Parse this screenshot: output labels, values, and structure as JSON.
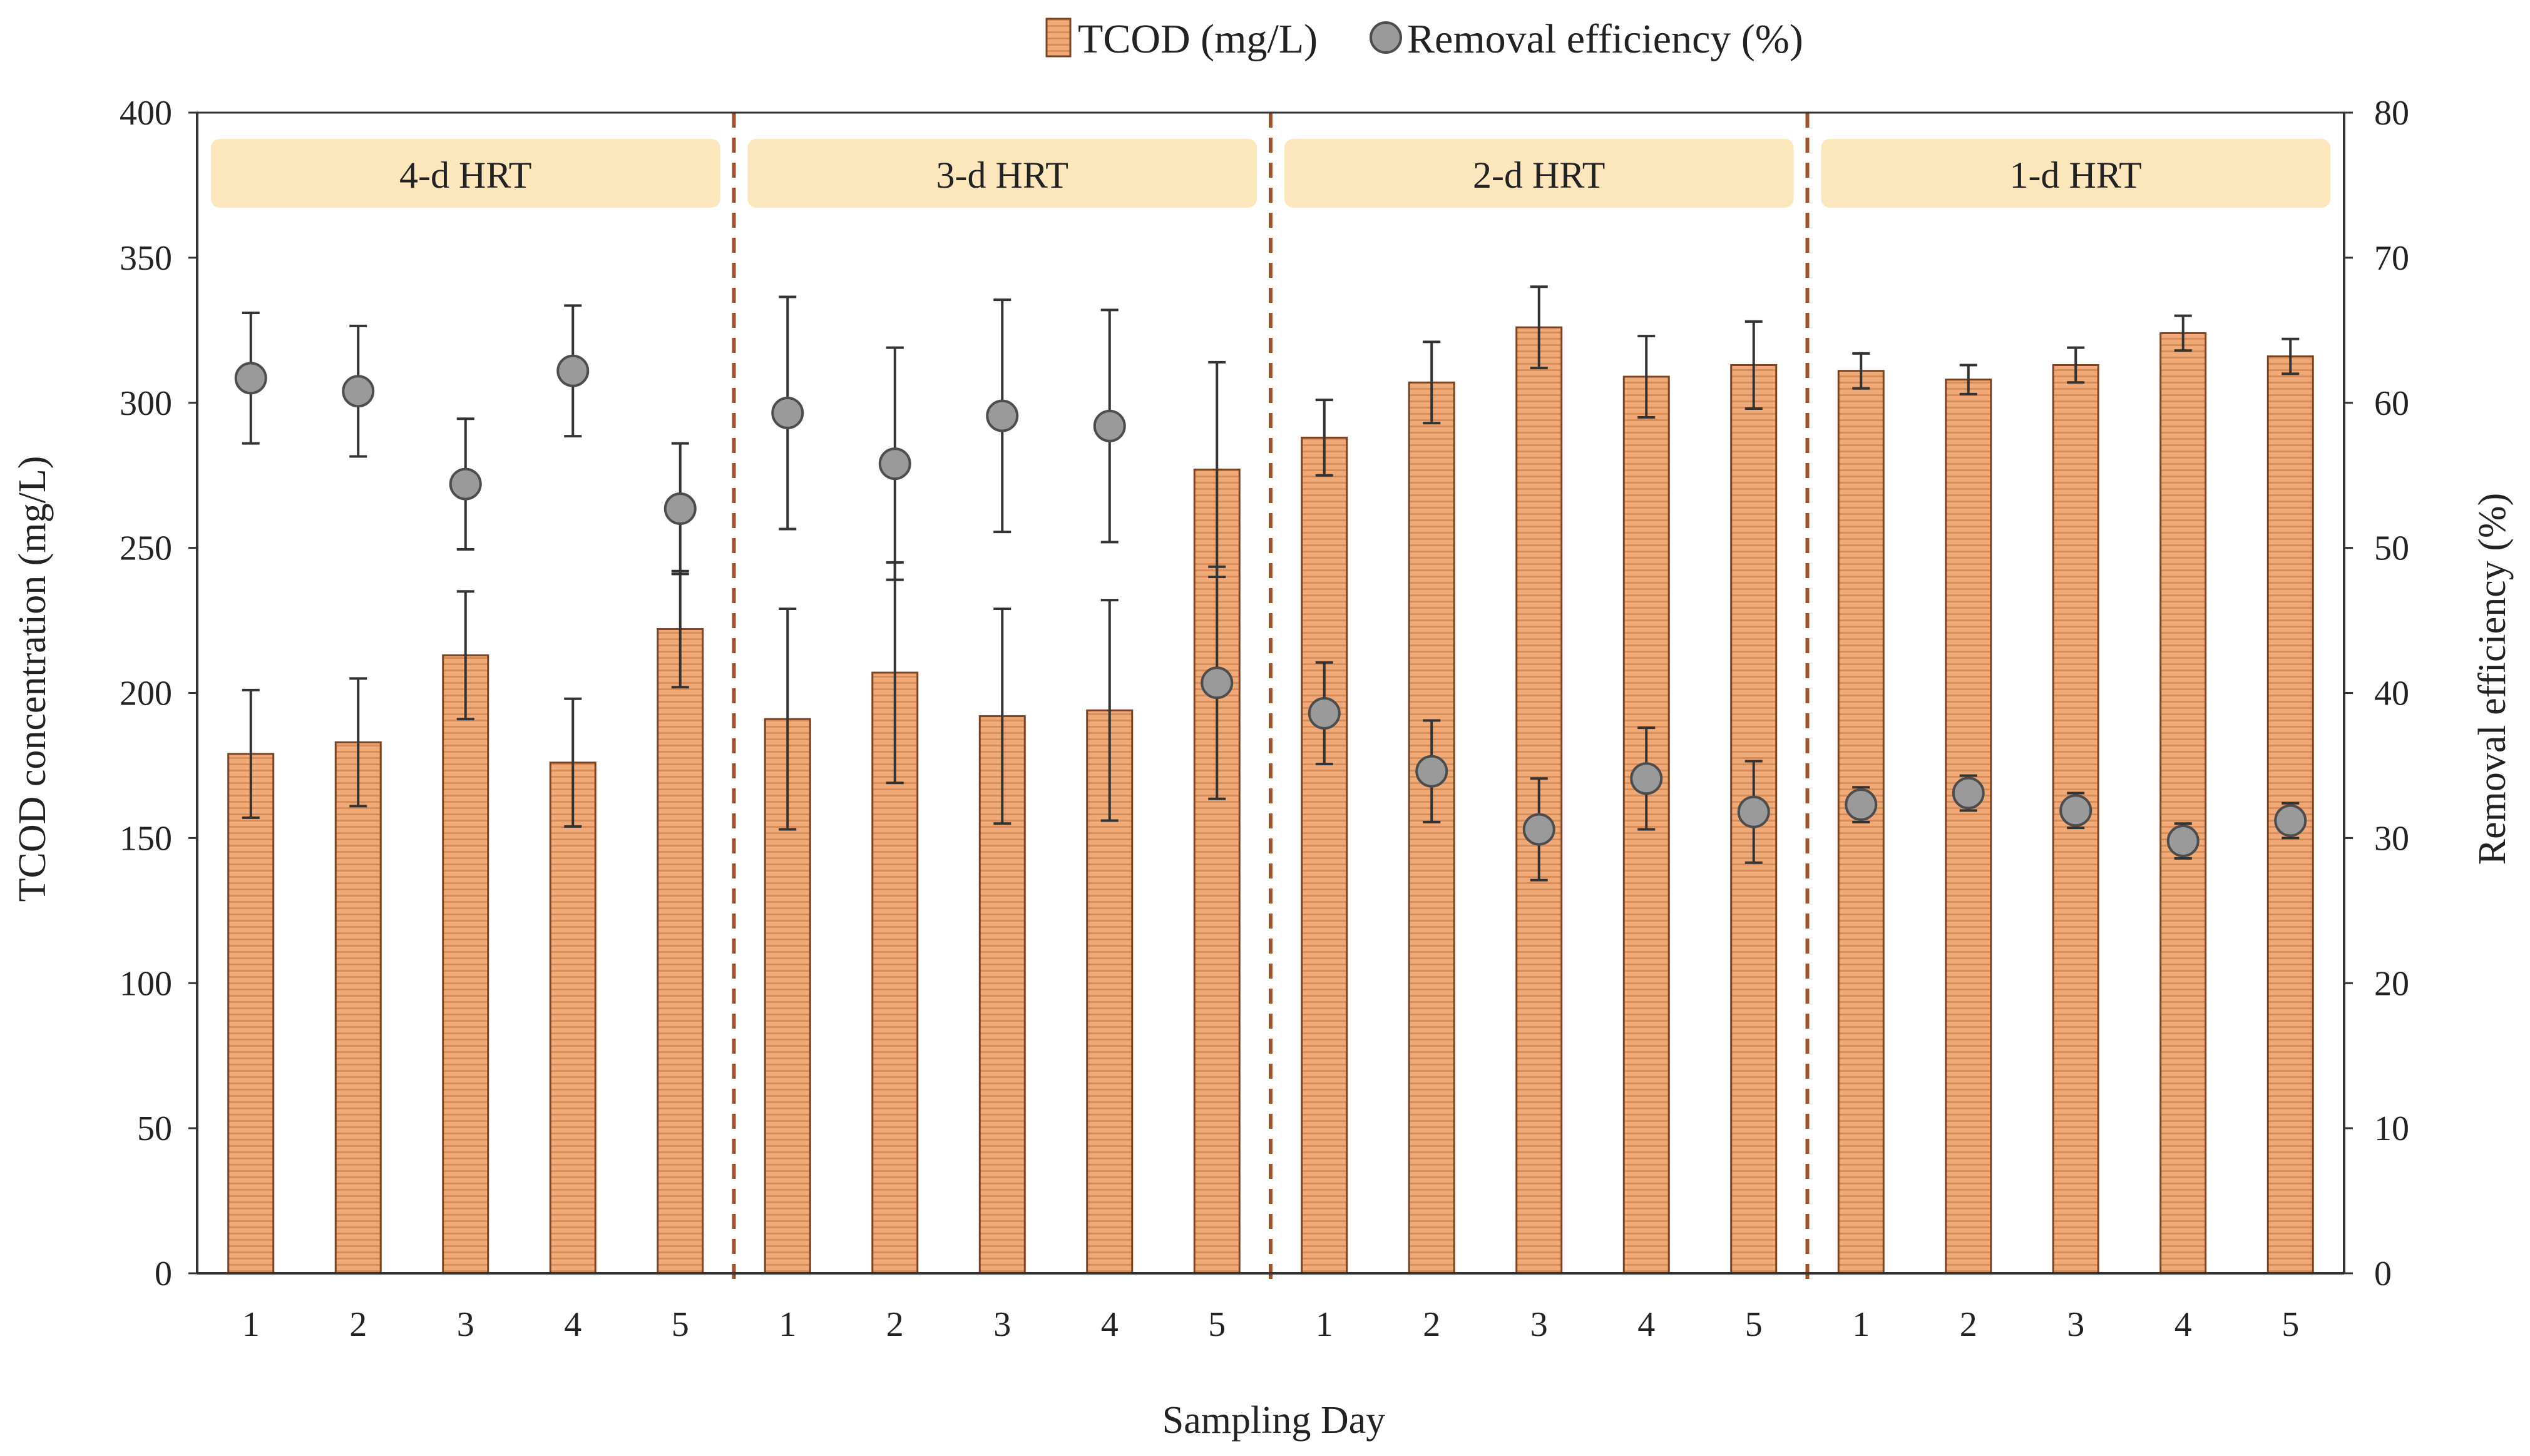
{
  "chart_data": {
    "type": "bar",
    "xlabel": "Sampling  Day",
    "ylabel_left": "TCOD concentration  (mg/L)",
    "ylabel_right": "Removal  efficiency  (%)",
    "ylim_left": [
      0,
      400
    ],
    "ylim_right": [
      0,
      80
    ],
    "yticks_left": [
      "0",
      "50",
      "100",
      "150",
      "200",
      "250",
      "300",
      "350",
      "400"
    ],
    "yticks_right": [
      "0",
      "10",
      "20",
      "30",
      "40",
      "50",
      "60",
      "70",
      "80"
    ],
    "grid": false,
    "legend_position": "top-center",
    "legend": {
      "bar_label": "TCOD (mg/L)",
      "dot_label": "Removal  efficiency (%)"
    },
    "categories": [
      "1",
      "2",
      "3",
      "4",
      "5",
      "1",
      "2",
      "3",
      "4",
      "5",
      "1",
      "2",
      "3",
      "4",
      "5",
      "1",
      "2",
      "3",
      "4",
      "5"
    ],
    "phases": [
      {
        "label": "4-d HRT",
        "start": 0,
        "end": 4
      },
      {
        "label": "3-d HRT",
        "start": 5,
        "end": 9
      },
      {
        "label": "2-d HRT",
        "start": 10,
        "end": 14
      },
      {
        "label": "1-d HRT",
        "start": 15,
        "end": 19
      }
    ],
    "series": [
      {
        "name": "TCOD (mg/L)",
        "kind": "bar",
        "axis": "left",
        "values": [
          179,
          183,
          213,
          176,
          222,
          191,
          207,
          192,
          194,
          277,
          288,
          307,
          326,
          309,
          313,
          311,
          308,
          313,
          324,
          316
        ],
        "errors": [
          22,
          22,
          22,
          22,
          20,
          38,
          38,
          37,
          38,
          37,
          13,
          14,
          14,
          14,
          15,
          6,
          5,
          6,
          6,
          6
        ]
      },
      {
        "name": "Removal  efficiency (%)",
        "kind": "scatter",
        "axis": "right",
        "values": [
          61.7,
          60.8,
          54.4,
          62.2,
          52.7,
          59.3,
          55.8,
          59.1,
          58.4,
          40.7,
          38.6,
          34.6,
          30.6,
          34.1,
          31.8,
          32.3,
          33.1,
          31.9,
          29.8,
          31.2
        ],
        "errors": [
          4.5,
          4.5,
          4.5,
          4.5,
          4.5,
          8,
          8,
          8,
          8,
          8,
          3.5,
          3.5,
          3.5,
          3.5,
          3.5,
          1.2,
          1.2,
          1.2,
          1.2,
          1.2
        ]
      }
    ],
    "colors": {
      "bar_fill": "#f0aa78",
      "bar_stripe": "#d98d58",
      "bar_stroke": "#7a4422",
      "dot_fill": "#9a9a9a",
      "dot_stroke": "#4d4d4d",
      "phase_box": "#fbe7bb",
      "divider": "#a0522d",
      "axis": "#333333"
    }
  }
}
